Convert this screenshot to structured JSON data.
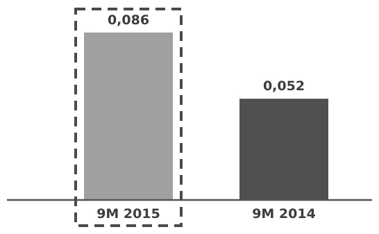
{
  "chart_data": {
    "type": "bar",
    "categories": [
      "9M 2015",
      "9M 2014"
    ],
    "values": [
      0.086,
      0.052
    ],
    "value_labels": [
      "0,086",
      "0,052"
    ],
    "ylim": [
      0,
      0.092
    ],
    "grid": false,
    "legend": "none",
    "highlighted_category": "9M 2015",
    "colors": {
      "bars": [
        "#a0a0a0",
        "#505050"
      ],
      "highlight_border": "#4a4a4a",
      "axis": "#555555",
      "text": "#3d3d3d"
    }
  }
}
